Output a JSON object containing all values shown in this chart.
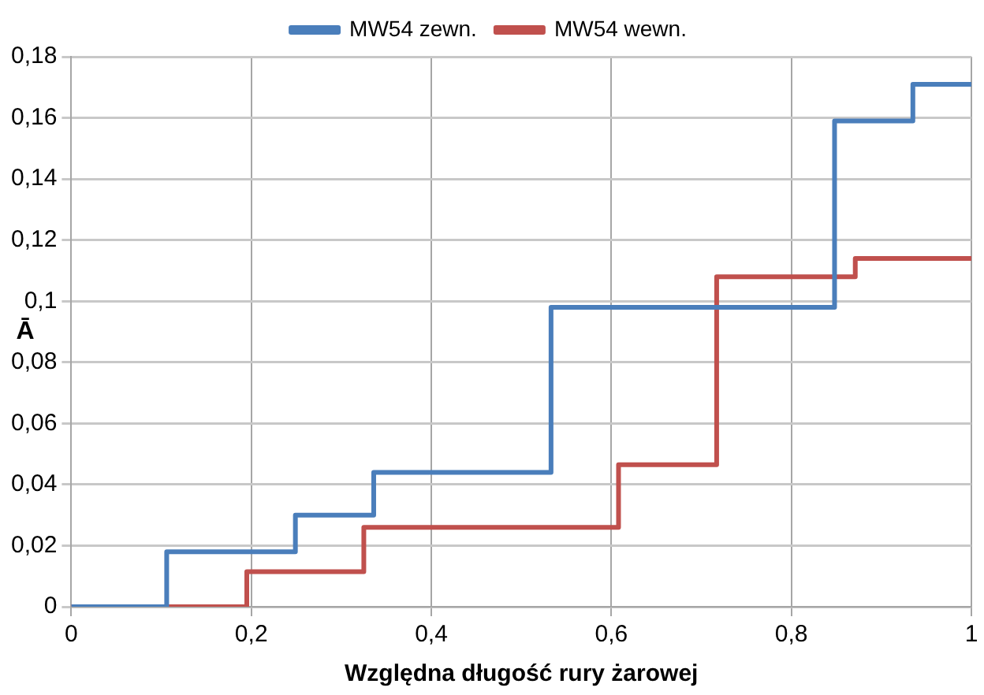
{
  "chart_data": {
    "type": "step",
    "xlabel": "Względna długość rury żarowej",
    "ylabel": "Ā",
    "series": [
      {
        "name": "MW54 zewn.",
        "color": "#4a7ebb",
        "x": [
          0,
          0.106,
          0.249,
          0.336,
          0.533,
          0.848,
          0.935,
          1
        ],
        "values": [
          0,
          0.018,
          0.03,
          0.044,
          0.098,
          0.159,
          0.171,
          0.171
        ]
      },
      {
        "name": "MW54 wewn.",
        "color": "#c0504d",
        "x": [
          0,
          0.195,
          0.325,
          0.608,
          0.717,
          0.871,
          1
        ],
        "values": [
          0,
          0.0115,
          0.026,
          0.0465,
          0.108,
          0.114,
          0.114
        ]
      }
    ],
    "xlim": [
      0,
      1
    ],
    "xticks": [
      0,
      {
        "value": 0.2,
        "label": "0,2"
      },
      {
        "value": 0.4,
        "label": "0,4"
      },
      {
        "value": 0.6,
        "label": "0,6"
      },
      {
        "value": 0.8,
        "label": "0,8"
      },
      1
    ],
    "ylim": [
      0,
      0.18
    ],
    "yticks": [
      0,
      {
        "value": 0.02,
        "label": "0,02"
      },
      {
        "value": 0.04,
        "label": "0,04"
      },
      {
        "value": 0.06,
        "label": "0,06"
      },
      {
        "value": 0.08,
        "label": "0,08"
      },
      {
        "value": 0.1,
        "label": "0,1"
      },
      {
        "value": 0.12,
        "label": "0,12"
      },
      {
        "value": 0.14,
        "label": "0,14"
      },
      {
        "value": 0.16,
        "label": "0,16"
      },
      {
        "value": 0.18,
        "label": "0,18"
      }
    ],
    "grid": true,
    "legend": "top",
    "line_style": "solid",
    "marker": "none"
  }
}
